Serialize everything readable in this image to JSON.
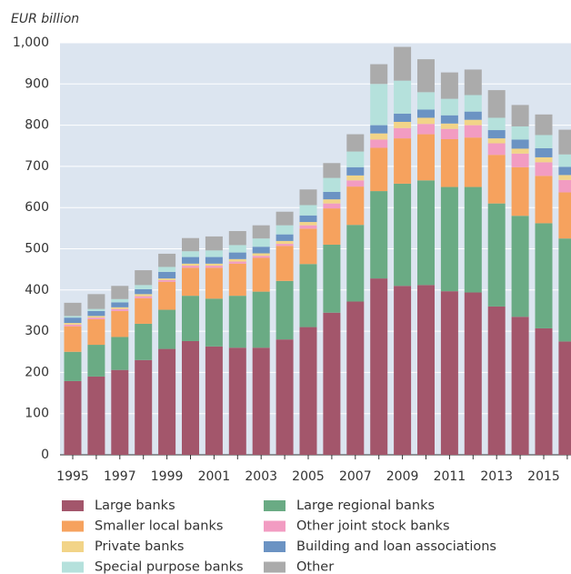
{
  "chart_data": {
    "type": "stacked_bar",
    "title": "EUR billion",
    "categories": [
      "1995",
      null,
      "1997",
      null,
      "1999",
      null,
      "2001",
      null,
      "2003",
      null,
      "2005",
      null,
      "2007",
      null,
      "2009",
      null,
      "2011",
      null,
      "2013",
      null,
      "2015",
      null
    ],
    "series": [
      {
        "name": "Large banks",
        "color": "#a3566b",
        "values": [
          179,
          190,
          206,
          230,
          257,
          276,
          263,
          260,
          260,
          280,
          310,
          345,
          372,
          428,
          410,
          412,
          397,
          394,
          360,
          335,
          307,
          275
        ]
      },
      {
        "name": "Large regional banks",
        "color": "#6aab84",
        "values": [
          71,
          77,
          80,
          88,
          95,
          110,
          116,
          126,
          136,
          142,
          153,
          165,
          186,
          212,
          248,
          254,
          253,
          256,
          250,
          245,
          255,
          250
        ]
      },
      {
        "name": "Smaller local banks",
        "color": "#f6a25e",
        "values": [
          62,
          62,
          63,
          62,
          68,
          68,
          75,
          78,
          82,
          85,
          86,
          88,
          93,
          105,
          110,
          112,
          116,
          120,
          118,
          118,
          115,
          112
        ]
      },
      {
        "name": "Other joint stock banks",
        "color": "#f29cc2",
        "values": [
          4,
          4,
          5,
          5,
          4,
          5,
          5,
          5,
          5,
          5,
          8,
          12,
          15,
          20,
          25,
          25,
          25,
          30,
          28,
          33,
          33,
          30
        ]
      },
      {
        "name": "Private banks",
        "color": "#f2d488",
        "values": [
          4,
          4,
          4,
          5,
          4,
          5,
          5,
          6,
          6,
          7,
          8,
          10,
          12,
          15,
          15,
          15,
          13,
          13,
          12,
          12,
          12,
          12
        ]
      },
      {
        "name": "Building and loan associations",
        "color": "#6b93c3",
        "values": [
          13,
          12,
          12,
          12,
          16,
          16,
          16,
          16,
          16,
          16,
          16,
          18,
          20,
          20,
          20,
          20,
          20,
          20,
          20,
          22,
          22,
          20
        ]
      },
      {
        "name": "Special purpose banks",
        "color": "#b5e1dc",
        "values": [
          4,
          5,
          8,
          10,
          12,
          14,
          16,
          18,
          20,
          22,
          25,
          34,
          38,
          100,
          80,
          42,
          40,
          40,
          30,
          32,
          32,
          30
        ]
      },
      {
        "name": "Other",
        "color": "#ababab",
        "values": [
          32,
          36,
          32,
          36,
          32,
          32,
          34,
          34,
          32,
          33,
          38,
          36,
          42,
          48,
          82,
          80,
          64,
          62,
          67,
          52,
          50,
          60
        ]
      }
    ],
    "ylim": [
      0,
      1000
    ],
    "yticks": [
      0,
      100,
      200,
      300,
      400,
      500,
      600,
      700,
      800,
      900,
      {
        "value": 1000,
        "label": "1,000"
      }
    ],
    "grid": true
  }
}
